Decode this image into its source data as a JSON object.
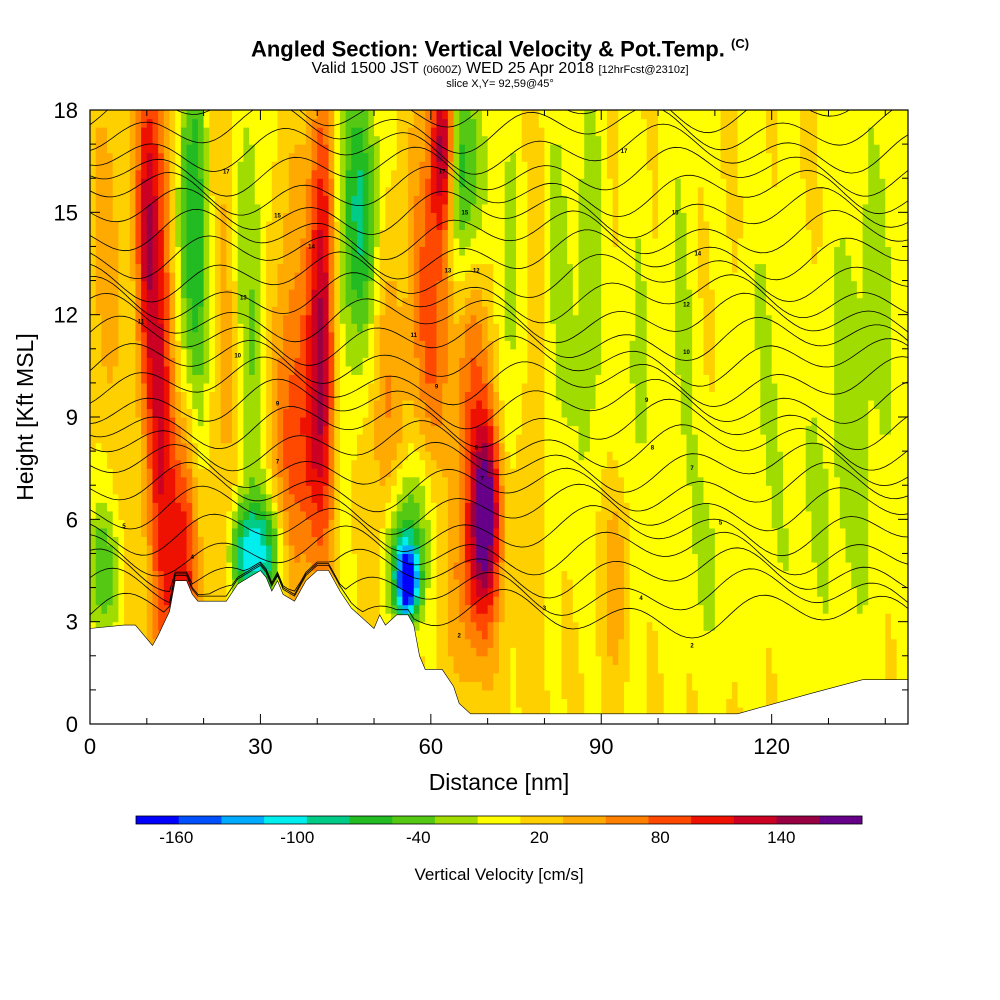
{
  "chart_data": {
    "type": "heatmap",
    "title_main": "Angled Section: Vertical Velocity & Pot.Temp.",
    "title_unit": "(C)",
    "subtitle_valid": "Valid 1500 JST",
    "subtitle_utc": "(0600Z)",
    "subtitle_date": "WED 25 Apr 2018",
    "subtitle_fcst": "[12hrFcst@2310z]",
    "subtitle_slice": "slice X,Y= 92,59@45°",
    "xlabel": "Distance [nm]",
    "ylabel": "Height [Kft MSL]",
    "xlim": [
      0,
      144
    ],
    "ylim": [
      0,
      18
    ],
    "xticks": [
      "0",
      "30",
      "60",
      "90",
      "120"
    ],
    "xtick_values": [
      0,
      30,
      60,
      90,
      120
    ],
    "yticks": [
      "0",
      "3",
      "6",
      "9",
      "12",
      "15",
      "18"
    ],
    "ytick_values": [
      0,
      3,
      6,
      9,
      12,
      15,
      18
    ],
    "colorbar_label": "Vertical Velocity [cm/s]",
    "colorbar_ticks": [
      "-160",
      "-100",
      "-40",
      "20",
      "80",
      "140"
    ],
    "colorbar_tick_values": [
      -160,
      -100,
      -40,
      20,
      80,
      140
    ],
    "colorbar_range": [
      -180,
      180
    ],
    "colorbar_colors": [
      "#0000ff",
      "#0050ff",
      "#00aaff",
      "#00eeee",
      "#00cc88",
      "#22bb22",
      "#55c814",
      "#a0dc00",
      "#ffff00",
      "#ffd000",
      "#ffaa00",
      "#ff8000",
      "#ff4800",
      "#ee1000",
      "#cc0022",
      "#990044",
      "#660088"
    ],
    "terrain": [
      [
        0,
        2.8
      ],
      [
        6,
        2.9
      ],
      [
        8,
        2.9
      ],
      [
        10,
        2.5
      ],
      [
        11,
        2.3
      ],
      [
        12,
        2.6
      ],
      [
        14,
        3.3
      ],
      [
        15,
        4.2
      ],
      [
        17,
        4.2
      ],
      [
        18,
        3.8
      ],
      [
        19,
        3.6
      ],
      [
        24,
        3.6
      ],
      [
        26,
        4.1
      ],
      [
        28,
        4.3
      ],
      [
        30,
        4.5
      ],
      [
        31,
        4.3
      ],
      [
        32,
        3.9
      ],
      [
        33,
        4.2
      ],
      [
        34,
        3.8
      ],
      [
        36,
        3.6
      ],
      [
        38,
        4.2
      ],
      [
        40,
        4.5
      ],
      [
        42,
        4.5
      ],
      [
        44,
        3.9
      ],
      [
        46,
        3.4
      ],
      [
        48,
        3.1
      ],
      [
        50,
        2.8
      ],
      [
        51,
        3.2
      ],
      [
        52,
        2.9
      ],
      [
        54,
        3.2
      ],
      [
        56,
        3.2
      ],
      [
        57,
        2.9
      ],
      [
        58,
        2.0
      ],
      [
        59,
        1.6
      ],
      [
        62,
        1.6
      ],
      [
        64,
        1.1
      ],
      [
        65,
        0.6
      ],
      [
        67,
        0.3
      ],
      [
        100,
        0.3
      ],
      [
        106,
        0.3
      ],
      [
        114,
        0.3
      ],
      [
        127,
        0.9
      ],
      [
        136,
        1.3
      ],
      [
        144,
        1.3
      ]
    ],
    "features": [
      {
        "x": 13,
        "z": 10,
        "w": 3.0,
        "h": 9,
        "v": 120
      },
      {
        "x": 17,
        "z": 5,
        "w": 2.5,
        "h": 5,
        "v": 110
      },
      {
        "x": 10,
        "z": 15,
        "w": 2.0,
        "h": 5,
        "v": 90
      },
      {
        "x": 16,
        "z": 13,
        "w": 3.0,
        "h": 7,
        "v": -80
      },
      {
        "x": 19,
        "z": 13,
        "w": 2.0,
        "h": 8,
        "v": -55
      },
      {
        "x": 24,
        "z": 10,
        "w": 3.0,
        "h": 8,
        "v": 30
      },
      {
        "x": 28,
        "z": 12,
        "w": 3.0,
        "h": 8,
        "v": -45
      },
      {
        "x": 31,
        "z": 5,
        "w": 3.5,
        "h": 1.6,
        "v": -90
      },
      {
        "x": 27,
        "z": 5,
        "w": 2.5,
        "h": 1.5,
        "v": -80
      },
      {
        "x": 35,
        "z": 9,
        "w": 3.0,
        "h": 7,
        "v": 50
      },
      {
        "x": 41,
        "z": 13,
        "w": 2.5,
        "h": 6,
        "v": 130
      },
      {
        "x": 39,
        "z": 8,
        "w": 4.0,
        "h": 4,
        "v": 60
      },
      {
        "x": 44,
        "z": 14,
        "w": 3.0,
        "h": 6,
        "v": -45
      },
      {
        "x": 48,
        "z": 15,
        "w": 3.0,
        "h": 4,
        "v": -80
      },
      {
        "x": 52,
        "z": 9,
        "w": 3.0,
        "h": 5,
        "v": 40
      },
      {
        "x": 56,
        "z": 4.1,
        "w": 2.0,
        "h": 1.0,
        "v": -170
      },
      {
        "x": 55,
        "z": 5,
        "w": 3.0,
        "h": 2.0,
        "v": -90
      },
      {
        "x": 59,
        "z": 6.5,
        "w": 4.0,
        "h": 2.5,
        "v": -40
      },
      {
        "x": 60,
        "z": 12,
        "w": 4.0,
        "h": 6,
        "v": 70
      },
      {
        "x": 62,
        "z": 17,
        "w": 2.0,
        "h": 2.5,
        "v": 110
      },
      {
        "x": 65,
        "z": 16,
        "w": 2.0,
        "h": 3.5,
        "v": -75
      },
      {
        "x": 68,
        "z": 16,
        "w": 2.5,
        "h": 3,
        "v": -40
      },
      {
        "x": 70,
        "z": 6.5,
        "w": 2.5,
        "h": 2.5,
        "v": 120
      },
      {
        "x": 68,
        "z": 4.5,
        "w": 4.0,
        "h": 3.0,
        "v": 80
      },
      {
        "x": 68,
        "z": 10,
        "w": 3.5,
        "h": 4.0,
        "v": 60
      },
      {
        "x": 74,
        "z": 12,
        "w": 3.0,
        "h": 6,
        "v": -40
      },
      {
        "x": 78,
        "z": 10,
        "w": 3.5,
        "h": 8,
        "v": 25
      },
      {
        "x": 82,
        "z": 12,
        "w": 3.0,
        "h": 7,
        "v": -35
      },
      {
        "x": 88,
        "z": 13,
        "w": 2.5,
        "h": 7,
        "v": -40
      },
      {
        "x": 93,
        "z": 4.5,
        "w": 2.5,
        "h": 3.0,
        "v": 45
      },
      {
        "x": 96,
        "z": 9,
        "w": 3.0,
        "h": 7,
        "v": -30
      },
      {
        "x": 104,
        "z": 12,
        "w": 3.0,
        "h": 7,
        "v": -25
      },
      {
        "x": 110,
        "z": 5,
        "w": 5.0,
        "h": 4,
        "v": -25
      },
      {
        "x": 118,
        "z": 11,
        "w": 4.0,
        "h": 6,
        "v": -20
      },
      {
        "x": 125,
        "z": 6,
        "w": 6.0,
        "h": 5,
        "v": -20
      },
      {
        "x": 134,
        "z": 9,
        "w": 5.0,
        "h": 8,
        "v": -30
      },
      {
        "x": 140,
        "z": 14,
        "w": 4.0,
        "h": 8,
        "v": -20
      },
      {
        "x": 2,
        "z": 4.5,
        "w": 3.0,
        "h": 2.0,
        "v": -60
      },
      {
        "x": 3,
        "z": 14,
        "w": 3.0,
        "h": 5,
        "v": 30
      }
    ],
    "isentrope_labels": [
      {
        "x": 24,
        "z": 16.2,
        "text": "17"
      },
      {
        "x": 33,
        "z": 14.9,
        "text": "15"
      },
      {
        "x": 39,
        "z": 14.0,
        "text": "14"
      },
      {
        "x": 27,
        "z": 12.5,
        "text": "13"
      },
      {
        "x": 26,
        "z": 10.8,
        "text": "10"
      },
      {
        "x": 33,
        "z": 9.4,
        "text": "9"
      },
      {
        "x": 33,
        "z": 7.7,
        "text": "7"
      },
      {
        "x": 6,
        "z": 5.8,
        "text": "5"
      },
      {
        "x": 18,
        "z": 4.9,
        "text": "4"
      },
      {
        "x": 9,
        "z": 11.8,
        "text": "11"
      },
      {
        "x": 62,
        "z": 16.2,
        "text": "17"
      },
      {
        "x": 66,
        "z": 15.0,
        "text": "15"
      },
      {
        "x": 63,
        "z": 13.3,
        "text": "13"
      },
      {
        "x": 68,
        "z": 13.3,
        "text": "12"
      },
      {
        "x": 57,
        "z": 11.4,
        "text": "11"
      },
      {
        "x": 61,
        "z": 9.9,
        "text": "9"
      },
      {
        "x": 68,
        "z": 8.1,
        "text": "8"
      },
      {
        "x": 69,
        "z": 7.2,
        "text": "7"
      },
      {
        "x": 65,
        "z": 2.6,
        "text": "2"
      },
      {
        "x": 80,
        "z": 3.4,
        "text": "3"
      },
      {
        "x": 94,
        "z": 16.8,
        "text": "17"
      },
      {
        "x": 103,
        "z": 15.0,
        "text": "15"
      },
      {
        "x": 107,
        "z": 13.8,
        "text": "14"
      },
      {
        "x": 105,
        "z": 12.3,
        "text": "12"
      },
      {
        "x": 105,
        "z": 10.9,
        "text": "10"
      },
      {
        "x": 98,
        "z": 9.5,
        "text": "9"
      },
      {
        "x": 99,
        "z": 8.1,
        "text": "8"
      },
      {
        "x": 106,
        "z": 7.5,
        "text": "7"
      },
      {
        "x": 111,
        "z": 5.9,
        "text": "5"
      },
      {
        "x": 97,
        "z": 3.7,
        "text": "4"
      },
      {
        "x": 106,
        "z": 2.3,
        "text": "2"
      }
    ]
  }
}
